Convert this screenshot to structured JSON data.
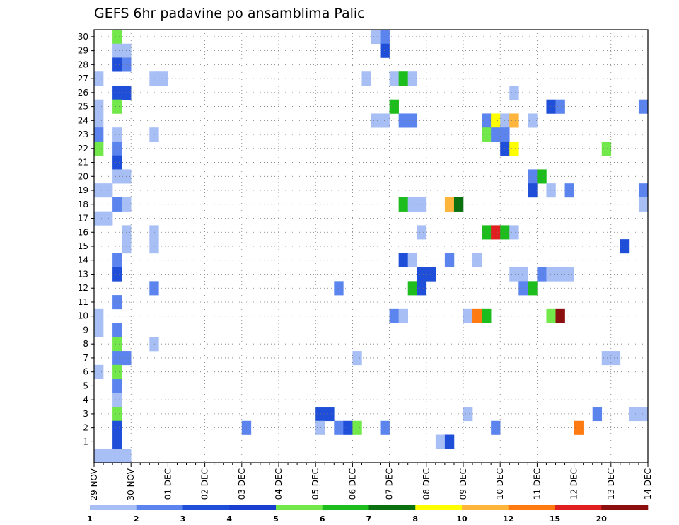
{
  "chart_data": {
    "type": "heatmap",
    "title": "GEFS 6hr padavine po ansamblima Palic",
    "xlabel": "",
    "ylabel": "",
    "x_start": "2020-11-29T00",
    "x_end": "2020-12-14T00",
    "x_step_hours": 6,
    "x_tick_labels": [
      "29 NOV",
      "30 NOV",
      "01 DEC",
      "02 DEC",
      "03 DEC",
      "04 DEC",
      "05 DEC",
      "06 DEC",
      "07 DEC",
      "08 DEC",
      "09 DEC",
      "10 DEC",
      "11 DEC",
      "12 DEC",
      "13 DEC",
      "14 DEC"
    ],
    "y_tick_labels": [
      "1",
      "2",
      "3",
      "4",
      "5",
      "6",
      "7",
      "8",
      "9",
      "10",
      "11",
      "12",
      "13",
      "14",
      "15",
      "16",
      "17",
      "18",
      "19",
      "20",
      "21",
      "22",
      "23",
      "24",
      "25",
      "26",
      "27",
      "28",
      "29",
      "30"
    ],
    "ylim": [
      0,
      30
    ],
    "grid": true,
    "colorbar": {
      "labels": [
        "1",
        "2",
        "3",
        "4",
        "5",
        "6",
        "7",
        "8",
        "10",
        "12",
        "15",
        "20"
      ],
      "colors": [
        "#a8bff5",
        "#5b84ee",
        "#1f4fd8",
        "#1a3fd0",
        "#72e84a",
        "#1cbd1c",
        "#0a7010",
        "#ffff00",
        "#ffb43c",
        "#ff7a10",
        "#e02020",
        "#8b0f0f"
      ]
    },
    "cells": [
      {
        "t": "2020-11-29T12",
        "member": 30,
        "cat": 4
      },
      {
        "t": "2020-11-29T12",
        "member": 29,
        "cat": 0
      },
      {
        "t": "2020-11-29T18",
        "member": 29,
        "cat": 0
      },
      {
        "t": "2020-11-29T12",
        "member": 28,
        "cat": 2
      },
      {
        "t": "2020-11-29T18",
        "member": 28,
        "cat": 1
      },
      {
        "t": "2020-11-29T00",
        "member": 27,
        "cat": 0
      },
      {
        "t": "2020-11-30T12",
        "member": 27,
        "cat": 0
      },
      {
        "t": "2020-11-30T18",
        "member": 27,
        "cat": 0
      },
      {
        "t": "2020-11-29T12",
        "member": 26,
        "cat": 2
      },
      {
        "t": "2020-11-29T18",
        "member": 26,
        "cat": 2
      },
      {
        "t": "2020-11-29T00",
        "member": 25,
        "cat": 0
      },
      {
        "t": "2020-11-29T12",
        "member": 25,
        "cat": 4
      },
      {
        "t": "2020-11-29T00",
        "member": 24,
        "cat": 0
      },
      {
        "t": "2020-11-29T00",
        "member": 23,
        "cat": 1
      },
      {
        "t": "2020-11-29T12",
        "member": 23,
        "cat": 0
      },
      {
        "t": "2020-11-30T12",
        "member": 23,
        "cat": 0
      },
      {
        "t": "2020-11-29T00",
        "member": 22,
        "cat": 4
      },
      {
        "t": "2020-11-29T12",
        "member": 22,
        "cat": 1
      },
      {
        "t": "2020-11-29T12",
        "member": 21,
        "cat": 2
      },
      {
        "t": "2020-11-29T12",
        "member": 20,
        "cat": 0
      },
      {
        "t": "2020-11-29T18",
        "member": 20,
        "cat": 0
      },
      {
        "t": "2020-11-29T00",
        "member": 19,
        "cat": 0
      },
      {
        "t": "2020-11-29T06",
        "member": 19,
        "cat": 0
      },
      {
        "t": "2020-11-29T12",
        "member": 18,
        "cat": 1
      },
      {
        "t": "2020-11-29T18",
        "member": 18,
        "cat": 0
      },
      {
        "t": "2020-11-29T00",
        "member": 17,
        "cat": 0
      },
      {
        "t": "2020-11-29T06",
        "member": 17,
        "cat": 0
      },
      {
        "t": "2020-11-29T18",
        "member": 16,
        "cat": 0
      },
      {
        "t": "2020-11-30T12",
        "member": 16,
        "cat": 0
      },
      {
        "t": "2020-11-29T18",
        "member": 15,
        "cat": 0
      },
      {
        "t": "2020-11-30T12",
        "member": 15,
        "cat": 0
      },
      {
        "t": "2020-11-29T12",
        "member": 14,
        "cat": 1
      },
      {
        "t": "2020-11-29T12",
        "member": 13,
        "cat": 2
      },
      {
        "t": "2020-11-30T12",
        "member": 12,
        "cat": 1
      },
      {
        "t": "2020-11-29T12",
        "member": 11,
        "cat": 1
      },
      {
        "t": "2020-11-29T00",
        "member": 10,
        "cat": 0
      },
      {
        "t": "2020-11-29T00",
        "member": 9,
        "cat": 0
      },
      {
        "t": "2020-11-29T12",
        "member": 9,
        "cat": 1
      },
      {
        "t": "2020-11-29T12",
        "member": 8,
        "cat": 4
      },
      {
        "t": "2020-11-30T12",
        "member": 8,
        "cat": 0
      },
      {
        "t": "2020-11-29T12",
        "member": 7,
        "cat": 1
      },
      {
        "t": "2020-11-29T18",
        "member": 7,
        "cat": 1
      },
      {
        "t": "2020-11-29T00",
        "member": 6,
        "cat": 0
      },
      {
        "t": "2020-11-29T12",
        "member": 6,
        "cat": 4
      },
      {
        "t": "2020-11-29T12",
        "member": 5,
        "cat": 1
      },
      {
        "t": "2020-11-29T12",
        "member": 4,
        "cat": 0
      },
      {
        "t": "2020-11-29T12",
        "member": 3,
        "cat": 4
      },
      {
        "t": "2020-11-29T12",
        "member": 2,
        "cat": 2
      },
      {
        "t": "2020-11-29T12",
        "member": 1,
        "cat": 2
      },
      {
        "t": "2020-11-29T00",
        "member": 0,
        "cat": 0
      },
      {
        "t": "2020-11-29T06",
        "member": 0,
        "cat": 0
      },
      {
        "t": "2020-11-29T12",
        "member": 0,
        "cat": 0
      },
      {
        "t": "2020-11-29T18",
        "member": 0,
        "cat": 0
      },
      {
        "t": "2020-12-03T00",
        "member": 2,
        "cat": 1
      },
      {
        "t": "2020-12-05T00",
        "member": 3,
        "cat": 2
      },
      {
        "t": "2020-12-05T06",
        "member": 3,
        "cat": 2
      },
      {
        "t": "2020-12-05T00",
        "member": 2,
        "cat": 0
      },
      {
        "t": "2020-12-05T12",
        "member": 2,
        "cat": 1
      },
      {
        "t": "2020-12-05T18",
        "member": 2,
        "cat": 2
      },
      {
        "t": "2020-12-06T00",
        "member": 2,
        "cat": 4
      },
      {
        "t": "2020-12-05T12",
        "member": 12,
        "cat": 1
      },
      {
        "t": "2020-12-06T00",
        "member": 7,
        "cat": 0
      },
      {
        "t": "2020-12-06T06",
        "member": 27,
        "cat": 0
      },
      {
        "t": "2020-12-06T12",
        "member": 30,
        "cat": 0
      },
      {
        "t": "2020-12-06T18",
        "member": 30,
        "cat": 1
      },
      {
        "t": "2020-12-06T18",
        "member": 29,
        "cat": 2
      },
      {
        "t": "2020-12-06T12",
        "member": 24,
        "cat": 0
      },
      {
        "t": "2020-12-06T18",
        "member": 24,
        "cat": 0
      },
      {
        "t": "2020-12-06T18",
        "member": 2,
        "cat": 1
      },
      {
        "t": "2020-12-07T00",
        "member": 27,
        "cat": 0
      },
      {
        "t": "2020-12-07T06",
        "member": 27,
        "cat": 5
      },
      {
        "t": "2020-12-07T12",
        "member": 27,
        "cat": 0
      },
      {
        "t": "2020-12-07T00",
        "member": 25,
        "cat": 5
      },
      {
        "t": "2020-12-07T06",
        "member": 24,
        "cat": 1
      },
      {
        "t": "2020-12-07T12",
        "member": 24,
        "cat": 1
      },
      {
        "t": "2020-12-07T06",
        "member": 18,
        "cat": 5
      },
      {
        "t": "2020-12-07T12",
        "member": 18,
        "cat": 0
      },
      {
        "t": "2020-12-07T18",
        "member": 18,
        "cat": 0
      },
      {
        "t": "2020-12-07T18",
        "member": 16,
        "cat": 0
      },
      {
        "t": "2020-12-07T06",
        "member": 14,
        "cat": 2
      },
      {
        "t": "2020-12-07T12",
        "member": 14,
        "cat": 0
      },
      {
        "t": "2020-12-07T18",
        "member": 13,
        "cat": 2
      },
      {
        "t": "2020-12-08T00",
        "member": 13,
        "cat": 2
      },
      {
        "t": "2020-12-07T12",
        "member": 12,
        "cat": 5
      },
      {
        "t": "2020-12-07T18",
        "member": 12,
        "cat": 2
      },
      {
        "t": "2020-12-07T00",
        "member": 10,
        "cat": 1
      },
      {
        "t": "2020-12-07T06",
        "member": 10,
        "cat": 0
      },
      {
        "t": "2020-12-08T06",
        "member": 1,
        "cat": 0
      },
      {
        "t": "2020-12-08T12",
        "member": 1,
        "cat": 2
      },
      {
        "t": "2020-12-08T12",
        "member": 18,
        "cat": 8
      },
      {
        "t": "2020-12-08T18",
        "member": 18,
        "cat": 6
      },
      {
        "t": "2020-12-08T12",
        "member": 14,
        "cat": 1
      },
      {
        "t": "2020-12-09T06",
        "member": 14,
        "cat": 0
      },
      {
        "t": "2020-12-09T00",
        "member": 10,
        "cat": 0
      },
      {
        "t": "2020-12-09T06",
        "member": 10,
        "cat": 9
      },
      {
        "t": "2020-12-09T12",
        "member": 10,
        "cat": 5
      },
      {
        "t": "2020-12-09T00",
        "member": 3,
        "cat": 0
      },
      {
        "t": "2020-12-09T12",
        "member": 24,
        "cat": 1
      },
      {
        "t": "2020-12-09T18",
        "member": 24,
        "cat": 7
      },
      {
        "t": "2020-12-10T00",
        "member": 24,
        "cat": 0
      },
      {
        "t": "2020-12-10T06",
        "member": 24,
        "cat": 8
      },
      {
        "t": "2020-12-10T18",
        "member": 24,
        "cat": 0
      },
      {
        "t": "2020-12-09T12",
        "member": 23,
        "cat": 4
      },
      {
        "t": "2020-12-09T18",
        "member": 23,
        "cat": 1
      },
      {
        "t": "2020-12-10T00",
        "member": 23,
        "cat": 1
      },
      {
        "t": "2020-12-10T00",
        "member": 22,
        "cat": 2
      },
      {
        "t": "2020-12-10T06",
        "member": 22,
        "cat": 7
      },
      {
        "t": "2020-12-09T12",
        "member": 16,
        "cat": 5
      },
      {
        "t": "2020-12-09T18",
        "member": 16,
        "cat": 10
      },
      {
        "t": "2020-12-10T00",
        "member": 16,
        "cat": 5
      },
      {
        "t": "2020-12-10T06",
        "member": 16,
        "cat": 0
      },
      {
        "t": "2020-12-09T18",
        "member": 2,
        "cat": 1
      },
      {
        "t": "2020-12-10T06",
        "member": 26,
        "cat": 0
      },
      {
        "t": "2020-12-10T06",
        "member": 13,
        "cat": 0
      },
      {
        "t": "2020-12-10T12",
        "member": 13,
        "cat": 0
      },
      {
        "t": "2020-12-10T12",
        "member": 12,
        "cat": 1
      },
      {
        "t": "2020-12-10T18",
        "member": 12,
        "cat": 5
      },
      {
        "t": "2020-12-10T18",
        "member": 20,
        "cat": 1
      },
      {
        "t": "2020-12-11T00",
        "member": 20,
        "cat": 5
      },
      {
        "t": "2020-12-10T18",
        "member": 19,
        "cat": 2
      },
      {
        "t": "2020-12-11T06",
        "member": 19,
        "cat": 0
      },
      {
        "t": "2020-12-11T06",
        "member": 25,
        "cat": 2
      },
      {
        "t": "2020-12-11T12",
        "member": 25,
        "cat": 1
      },
      {
        "t": "2020-12-11T00",
        "member": 13,
        "cat": 1
      },
      {
        "t": "2020-12-11T06",
        "member": 13,
        "cat": 0
      },
      {
        "t": "2020-12-11T12",
        "member": 13,
        "cat": 0
      },
      {
        "t": "2020-12-11T18",
        "member": 13,
        "cat": 0
      },
      {
        "t": "2020-12-11T06",
        "member": 10,
        "cat": 4
      },
      {
        "t": "2020-12-11T12",
        "member": 10,
        "cat": 11
      },
      {
        "t": "2020-12-11T18",
        "member": 19,
        "cat": 1
      },
      {
        "t": "2020-12-12T00",
        "member": 2,
        "cat": 9
      },
      {
        "t": "2020-12-12T18",
        "member": 22,
        "cat": 4
      },
      {
        "t": "2020-12-12T12",
        "member": 3,
        "cat": 1
      },
      {
        "t": "2020-12-12T18",
        "member": 7,
        "cat": 0
      },
      {
        "t": "2020-12-13T00",
        "member": 7,
        "cat": 0
      },
      {
        "t": "2020-12-13T06",
        "member": 15,
        "cat": 2
      },
      {
        "t": "2020-12-13T12",
        "member": 3,
        "cat": 0
      },
      {
        "t": "2020-12-13T18",
        "member": 3,
        "cat": 0
      },
      {
        "t": "2020-12-13T18",
        "member": 25,
        "cat": 1
      },
      {
        "t": "2020-12-13T18",
        "member": 19,
        "cat": 1
      },
      {
        "t": "2020-12-13T18",
        "member": 18,
        "cat": 0
      }
    ]
  }
}
